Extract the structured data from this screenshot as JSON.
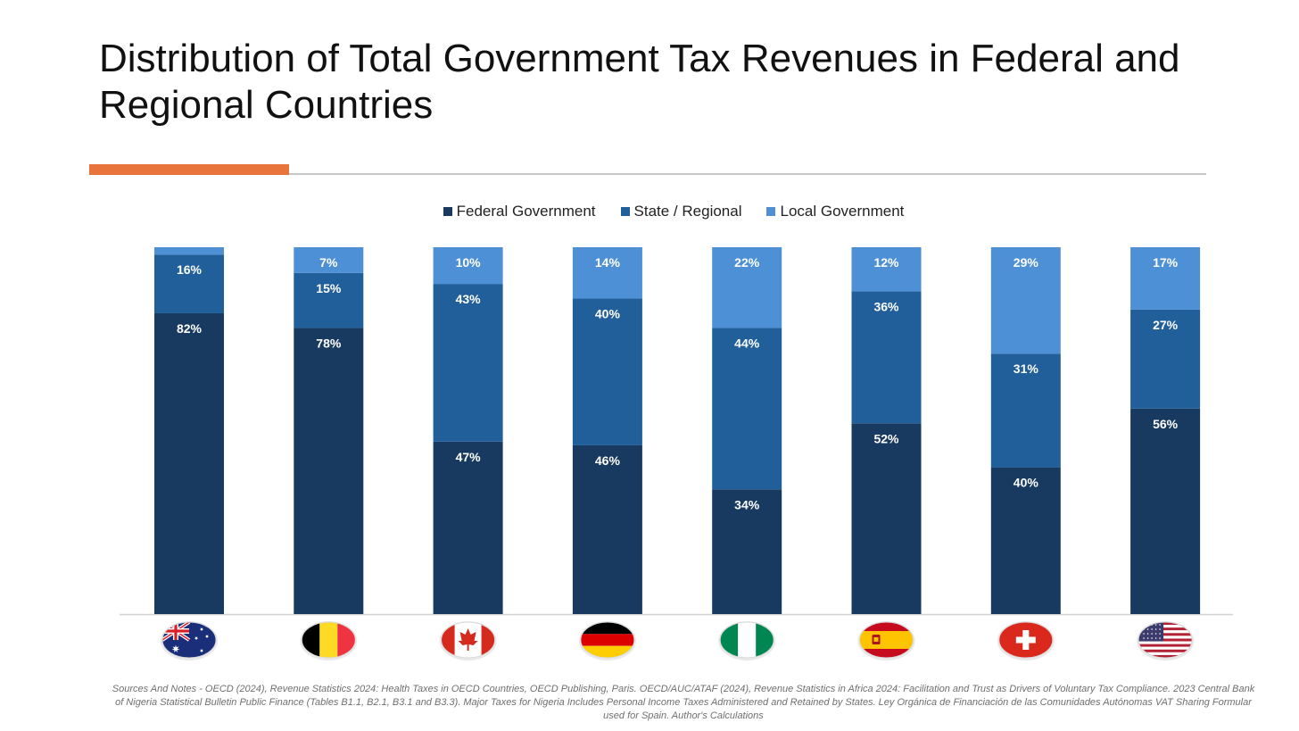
{
  "chart_data": {
    "type": "bar",
    "stacked": true,
    "title": "Distribution of Total Government Tax Revenues in Federal and Regional Countries",
    "categories": [
      "Australia",
      "Belgium",
      "Canada",
      "Germany",
      "Nigeria",
      "Spain",
      "Switzerland",
      "United States"
    ],
    "series": [
      {
        "name": "Federal Government",
        "color": "#183a60",
        "values": [
          82,
          78,
          47,
          46,
          34,
          52,
          40,
          56
        ]
      },
      {
        "name": "State / Regional",
        "color": "#215f9b",
        "values": [
          16,
          15,
          43,
          40,
          44,
          36,
          31,
          27
        ]
      },
      {
        "name": "Local Government",
        "color": "#4e90d6",
        "values": [
          2,
          7,
          10,
          14,
          22,
          12,
          29,
          17
        ]
      }
    ],
    "data_labels": [
      [
        "82%",
        "78%",
        "47%",
        "46%",
        "34%",
        "52%",
        "40%",
        "56%"
      ],
      [
        "16%",
        "15%",
        "43%",
        "40%",
        "44%",
        "36%",
        "31%",
        "27%"
      ],
      [
        "",
        "7%",
        "10%",
        "14%",
        "22%",
        "12%",
        "29%",
        "17%"
      ]
    ],
    "ylim": [
      0,
      100
    ],
    "legend_position": "top-center",
    "grid": false
  },
  "flags": [
    "australia-flag",
    "belgium-flag",
    "canada-flag",
    "germany-flag",
    "nigeria-flag",
    "spain-flag",
    "switzerland-flag",
    "usa-flag"
  ],
  "notes": "Sources And Notes - OECD (2024), Revenue Statistics 2024: Health Taxes in OECD Countries, OECD Publishing, Paris. OECD/AUC/ATAF (2024), Revenue Statistics in Africa 2024: Facilitation and Trust as Drivers of Voluntary Tax Compliance. 2023 Central Bank of Nigeria Statistical Bulletin Public Finance  (Tables B1.1, B2.1, B3.1 and B3.3). Major Taxes for Nigeria Includes Personal Income Taxes Administered and Retained by States. Ley Orgánica de Financiación de las Comunidades Autónomas VAT Sharing Formular used for Spain. Author's Calculations",
  "colors": {
    "accent": "#e8743b",
    "rule": "#c8c8c8"
  }
}
